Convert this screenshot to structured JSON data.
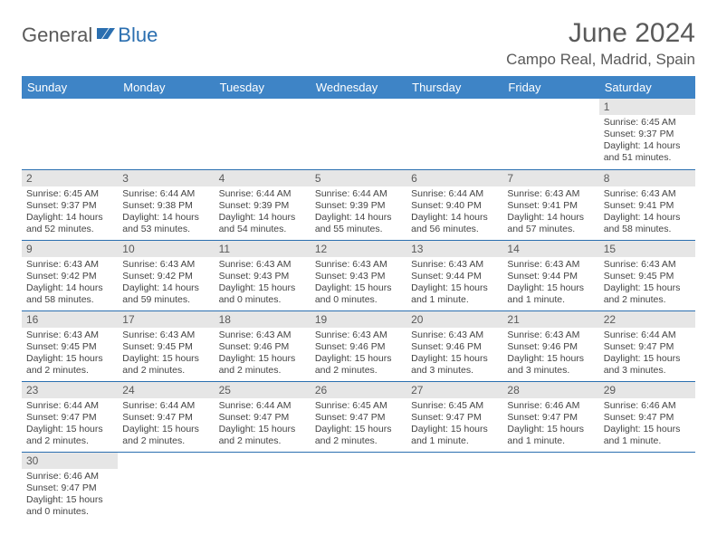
{
  "logo": {
    "part1": "General",
    "part2": "Blue"
  },
  "title": "June 2024",
  "location": "Campo Real, Madrid, Spain",
  "colors": {
    "header_bg": "#3e84c6",
    "header_fg": "#ffffff",
    "daynum_bg": "#e6e6e6",
    "rule": "#2b6fb0",
    "logo_gray": "#5a5a5a",
    "logo_blue": "#2b6fb0"
  },
  "weekdays": [
    "Sunday",
    "Monday",
    "Tuesday",
    "Wednesday",
    "Thursday",
    "Friday",
    "Saturday"
  ],
  "weeks": [
    [
      null,
      null,
      null,
      null,
      null,
      null,
      {
        "n": "1",
        "sr": "Sunrise: 6:45 AM",
        "ss": "Sunset: 9:37 PM",
        "dl": "Daylight: 14 hours and 51 minutes."
      }
    ],
    [
      {
        "n": "2",
        "sr": "Sunrise: 6:45 AM",
        "ss": "Sunset: 9:37 PM",
        "dl": "Daylight: 14 hours and 52 minutes."
      },
      {
        "n": "3",
        "sr": "Sunrise: 6:44 AM",
        "ss": "Sunset: 9:38 PM",
        "dl": "Daylight: 14 hours and 53 minutes."
      },
      {
        "n": "4",
        "sr": "Sunrise: 6:44 AM",
        "ss": "Sunset: 9:39 PM",
        "dl": "Daylight: 14 hours and 54 minutes."
      },
      {
        "n": "5",
        "sr": "Sunrise: 6:44 AM",
        "ss": "Sunset: 9:39 PM",
        "dl": "Daylight: 14 hours and 55 minutes."
      },
      {
        "n": "6",
        "sr": "Sunrise: 6:44 AM",
        "ss": "Sunset: 9:40 PM",
        "dl": "Daylight: 14 hours and 56 minutes."
      },
      {
        "n": "7",
        "sr": "Sunrise: 6:43 AM",
        "ss": "Sunset: 9:41 PM",
        "dl": "Daylight: 14 hours and 57 minutes."
      },
      {
        "n": "8",
        "sr": "Sunrise: 6:43 AM",
        "ss": "Sunset: 9:41 PM",
        "dl": "Daylight: 14 hours and 58 minutes."
      }
    ],
    [
      {
        "n": "9",
        "sr": "Sunrise: 6:43 AM",
        "ss": "Sunset: 9:42 PM",
        "dl": "Daylight: 14 hours and 58 minutes."
      },
      {
        "n": "10",
        "sr": "Sunrise: 6:43 AM",
        "ss": "Sunset: 9:42 PM",
        "dl": "Daylight: 14 hours and 59 minutes."
      },
      {
        "n": "11",
        "sr": "Sunrise: 6:43 AM",
        "ss": "Sunset: 9:43 PM",
        "dl": "Daylight: 15 hours and 0 minutes."
      },
      {
        "n": "12",
        "sr": "Sunrise: 6:43 AM",
        "ss": "Sunset: 9:43 PM",
        "dl": "Daylight: 15 hours and 0 minutes."
      },
      {
        "n": "13",
        "sr": "Sunrise: 6:43 AM",
        "ss": "Sunset: 9:44 PM",
        "dl": "Daylight: 15 hours and 1 minute."
      },
      {
        "n": "14",
        "sr": "Sunrise: 6:43 AM",
        "ss": "Sunset: 9:44 PM",
        "dl": "Daylight: 15 hours and 1 minute."
      },
      {
        "n": "15",
        "sr": "Sunrise: 6:43 AM",
        "ss": "Sunset: 9:45 PM",
        "dl": "Daylight: 15 hours and 2 minutes."
      }
    ],
    [
      {
        "n": "16",
        "sr": "Sunrise: 6:43 AM",
        "ss": "Sunset: 9:45 PM",
        "dl": "Daylight: 15 hours and 2 minutes."
      },
      {
        "n": "17",
        "sr": "Sunrise: 6:43 AM",
        "ss": "Sunset: 9:45 PM",
        "dl": "Daylight: 15 hours and 2 minutes."
      },
      {
        "n": "18",
        "sr": "Sunrise: 6:43 AM",
        "ss": "Sunset: 9:46 PM",
        "dl": "Daylight: 15 hours and 2 minutes."
      },
      {
        "n": "19",
        "sr": "Sunrise: 6:43 AM",
        "ss": "Sunset: 9:46 PM",
        "dl": "Daylight: 15 hours and 2 minutes."
      },
      {
        "n": "20",
        "sr": "Sunrise: 6:43 AM",
        "ss": "Sunset: 9:46 PM",
        "dl": "Daylight: 15 hours and 3 minutes."
      },
      {
        "n": "21",
        "sr": "Sunrise: 6:43 AM",
        "ss": "Sunset: 9:46 PM",
        "dl": "Daylight: 15 hours and 3 minutes."
      },
      {
        "n": "22",
        "sr": "Sunrise: 6:44 AM",
        "ss": "Sunset: 9:47 PM",
        "dl": "Daylight: 15 hours and 3 minutes."
      }
    ],
    [
      {
        "n": "23",
        "sr": "Sunrise: 6:44 AM",
        "ss": "Sunset: 9:47 PM",
        "dl": "Daylight: 15 hours and 2 minutes."
      },
      {
        "n": "24",
        "sr": "Sunrise: 6:44 AM",
        "ss": "Sunset: 9:47 PM",
        "dl": "Daylight: 15 hours and 2 minutes."
      },
      {
        "n": "25",
        "sr": "Sunrise: 6:44 AM",
        "ss": "Sunset: 9:47 PM",
        "dl": "Daylight: 15 hours and 2 minutes."
      },
      {
        "n": "26",
        "sr": "Sunrise: 6:45 AM",
        "ss": "Sunset: 9:47 PM",
        "dl": "Daylight: 15 hours and 2 minutes."
      },
      {
        "n": "27",
        "sr": "Sunrise: 6:45 AM",
        "ss": "Sunset: 9:47 PM",
        "dl": "Daylight: 15 hours and 1 minute."
      },
      {
        "n": "28",
        "sr": "Sunrise: 6:46 AM",
        "ss": "Sunset: 9:47 PM",
        "dl": "Daylight: 15 hours and 1 minute."
      },
      {
        "n": "29",
        "sr": "Sunrise: 6:46 AM",
        "ss": "Sunset: 9:47 PM",
        "dl": "Daylight: 15 hours and 1 minute."
      }
    ],
    [
      {
        "n": "30",
        "sr": "Sunrise: 6:46 AM",
        "ss": "Sunset: 9:47 PM",
        "dl": "Daylight: 15 hours and 0 minutes."
      },
      null,
      null,
      null,
      null,
      null,
      null
    ]
  ]
}
